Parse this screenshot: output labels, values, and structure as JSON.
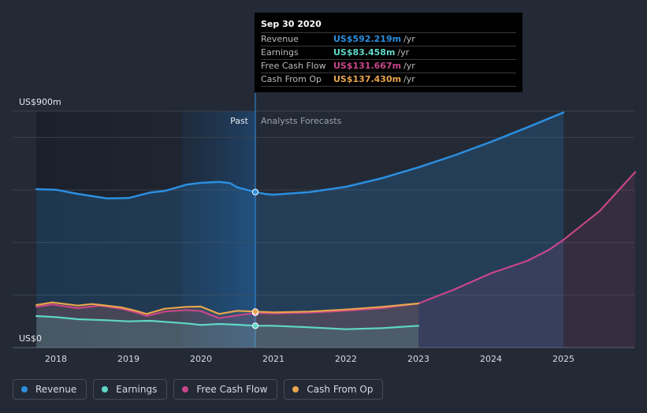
{
  "chart_data": {
    "type": "area",
    "ylabel_top": "US$900m",
    "ylabel_bottom": "US$0",
    "ylim": [
      0,
      900
    ],
    "xlim": [
      2017.73,
      2025.99
    ],
    "x_ticks": [
      "2018",
      "2019",
      "2020",
      "2021",
      "2022",
      "2023",
      "2024",
      "2025"
    ],
    "divider_x": 2020.75,
    "past_label": "Past",
    "forecast_label": "Analysts Forecasts",
    "series": [
      {
        "name": "Revenue",
        "color": "#2b8fe0",
        "points": [
          [
            2017.73,
            603
          ],
          [
            2018.0,
            601
          ],
          [
            2018.3,
            585
          ],
          [
            2018.7,
            568
          ],
          [
            2019.0,
            569
          ],
          [
            2019.3,
            590
          ],
          [
            2019.5,
            596
          ],
          [
            2019.8,
            620
          ],
          [
            2020.0,
            627
          ],
          [
            2020.25,
            631
          ],
          [
            2020.4,
            626
          ],
          [
            2020.5,
            610
          ],
          [
            2020.75,
            592
          ],
          [
            2020.9,
            584
          ],
          [
            2021.0,
            582
          ],
          [
            2021.5,
            592
          ],
          [
            2022.0,
            612
          ],
          [
            2022.5,
            645
          ],
          [
            2023.0,
            686
          ],
          [
            2023.5,
            732
          ],
          [
            2024.0,
            783
          ],
          [
            2024.5,
            838
          ],
          [
            2025.0,
            895
          ]
        ]
      },
      {
        "name": "Earnings",
        "color": "#5fd8c6",
        "points": [
          [
            2017.73,
            120
          ],
          [
            2018.0,
            116
          ],
          [
            2018.3,
            108
          ],
          [
            2018.7,
            104
          ],
          [
            2019.0,
            100
          ],
          [
            2019.3,
            102
          ],
          [
            2019.5,
            98
          ],
          [
            2019.8,
            92
          ],
          [
            2020.0,
            86
          ],
          [
            2020.25,
            90
          ],
          [
            2020.5,
            87
          ],
          [
            2020.75,
            83
          ],
          [
            2021.0,
            83
          ],
          [
            2021.5,
            77
          ],
          [
            2022.0,
            70
          ],
          [
            2022.5,
            74
          ],
          [
            2023.0,
            83
          ]
        ]
      },
      {
        "name": "Free Cash Flow",
        "color": "#c8468a",
        "points": [
          [
            2017.73,
            155
          ],
          [
            2017.95,
            164
          ],
          [
            2018.3,
            150
          ],
          [
            2018.6,
            160
          ],
          [
            2018.9,
            148
          ],
          [
            2019.1,
            134
          ],
          [
            2019.25,
            120
          ],
          [
            2019.5,
            137
          ],
          [
            2019.8,
            143
          ],
          [
            2020.0,
            139
          ],
          [
            2020.25,
            112
          ],
          [
            2020.5,
            122
          ],
          [
            2020.75,
            132
          ],
          [
            2021.0,
            130
          ],
          [
            2021.5,
            133
          ],
          [
            2022.0,
            140
          ],
          [
            2022.5,
            150
          ],
          [
            2023.0,
            168
          ],
          [
            2023.5,
            222
          ],
          [
            2024.0,
            283
          ],
          [
            2024.5,
            330
          ],
          [
            2024.8,
            372
          ],
          [
            2025.0,
            410
          ],
          [
            2025.5,
            520
          ],
          [
            2025.99,
            668
          ]
        ]
      },
      {
        "name": "Cash From Op",
        "color": "#e8a54c",
        "points": [
          [
            2017.73,
            162
          ],
          [
            2017.95,
            172
          ],
          [
            2018.3,
            160
          ],
          [
            2018.5,
            166
          ],
          [
            2018.9,
            153
          ],
          [
            2019.1,
            140
          ],
          [
            2019.25,
            128
          ],
          [
            2019.5,
            148
          ],
          [
            2019.8,
            155
          ],
          [
            2020.0,
            156
          ],
          [
            2020.25,
            128
          ],
          [
            2020.5,
            140
          ],
          [
            2020.75,
            137
          ],
          [
            2021.0,
            134
          ],
          [
            2021.5,
            137
          ],
          [
            2022.0,
            145
          ],
          [
            2022.5,
            155
          ],
          [
            2023.0,
            168
          ]
        ]
      }
    ]
  },
  "tooltip": {
    "date": "Sep 30 2020",
    "rows": [
      {
        "label": "Revenue",
        "value": "US$592.219m",
        "unit": "/yr",
        "color": "#2b8fe0"
      },
      {
        "label": "Earnings",
        "value": "US$83.458m",
        "unit": "/yr",
        "color": "#5fd8c6"
      },
      {
        "label": "Free Cash Flow",
        "value": "US$131.667m",
        "unit": "/yr",
        "color": "#c8468a"
      },
      {
        "label": "Cash From Op",
        "value": "US$137.430m",
        "unit": "/yr",
        "color": "#e8a54c"
      }
    ]
  },
  "legend": [
    {
      "label": "Revenue",
      "color": "#2b8fe0"
    },
    {
      "label": "Earnings",
      "color": "#5fd8c6"
    },
    {
      "label": "Free Cash Flow",
      "color": "#c8468a"
    },
    {
      "label": "Cash From Op",
      "color": "#e8a54c"
    }
  ]
}
